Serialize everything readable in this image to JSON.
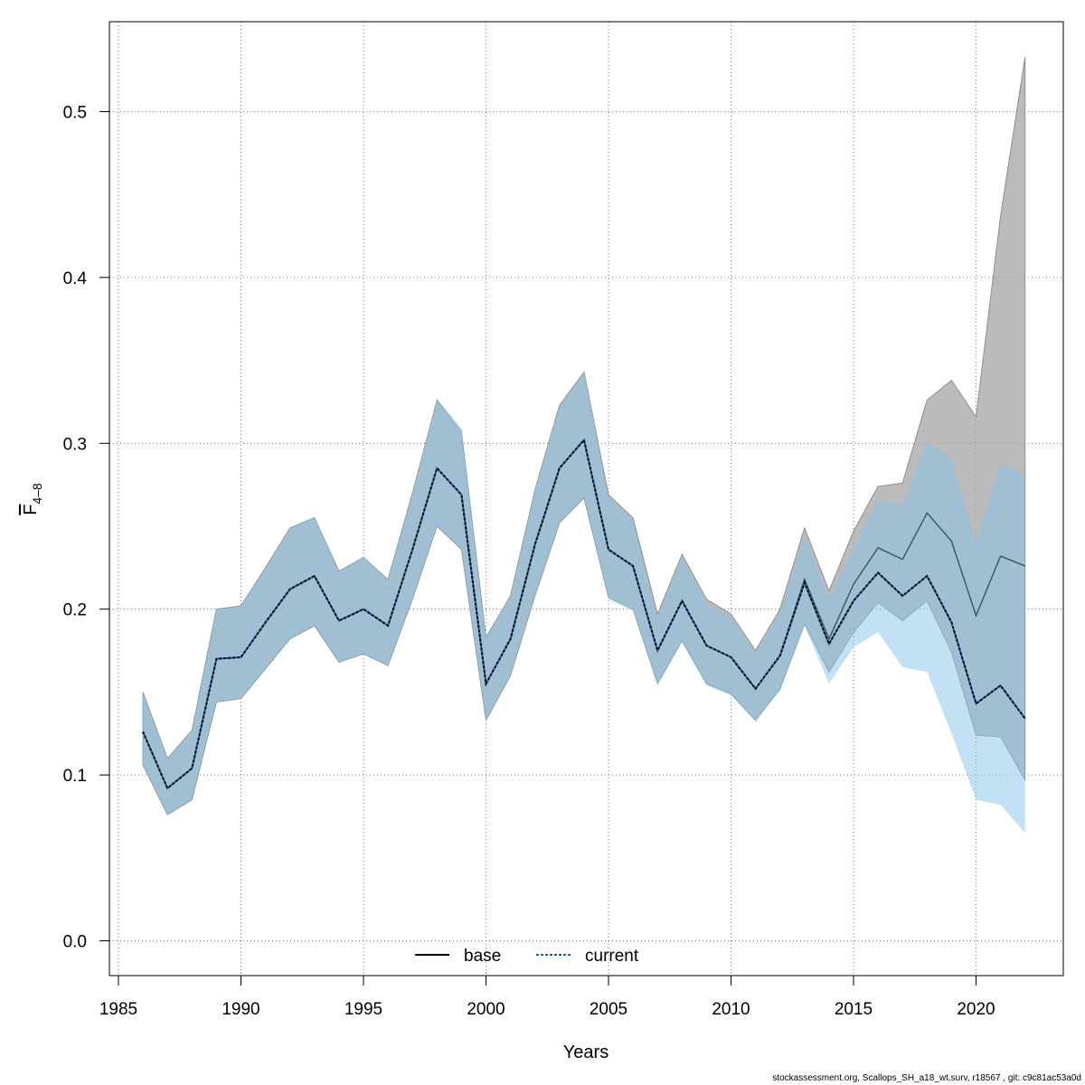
{
  "chart_data": {
    "type": "line",
    "title": "",
    "xlabel": "Years",
    "ylabel_main": "F",
    "ylabel_sub": "4–8",
    "xlim": [
      1985,
      2023
    ],
    "ylim": [
      0.0,
      0.54
    ],
    "xticks": [
      1985,
      1990,
      1995,
      2000,
      2005,
      2010,
      2015,
      2020
    ],
    "yticks": [
      "0.0",
      "0.1",
      "0.2",
      "0.3",
      "0.4",
      "0.5"
    ],
    "grid": true,
    "legend_position": "bottom-center",
    "x": [
      1986,
      1987,
      1988,
      1989,
      1990,
      1991,
      1992,
      1993,
      1994,
      1995,
      1996,
      1997,
      1998,
      1999,
      2000,
      2001,
      2002,
      2003,
      2004,
      2005,
      2006,
      2007,
      2008,
      2009,
      2010,
      2011,
      2012,
      2013,
      2014,
      2015,
      2016,
      2017,
      2018,
      2019,
      2020,
      2021,
      2022
    ],
    "series": [
      {
        "name": "base",
        "color": "#000000",
        "band_color": "#a8a8a8",
        "values": [
          0.126,
          0.092,
          0.104,
          0.17,
          0.171,
          0.192,
          0.212,
          0.22,
          0.193,
          0.2,
          0.19,
          0.236,
          0.285,
          0.269,
          0.155,
          0.182,
          0.239,
          0.285,
          0.302,
          0.236,
          0.226,
          0.175,
          0.205,
          0.178,
          0.171,
          0.152,
          0.172,
          0.218,
          0.182,
          0.215,
          0.237,
          0.23,
          0.258,
          0.241,
          0.196,
          0.232,
          0.226
        ],
        "lower": [
          0.106,
          0.076,
          0.085,
          0.144,
          0.146,
          0.164,
          0.182,
          0.19,
          0.168,
          0.173,
          0.166,
          0.206,
          0.25,
          0.236,
          0.133,
          0.16,
          0.208,
          0.252,
          0.267,
          0.207,
          0.2,
          0.155,
          0.181,
          0.155,
          0.149,
          0.133,
          0.152,
          0.191,
          0.162,
          0.186,
          0.204,
          0.193,
          0.205,
          0.174,
          0.124,
          0.123,
          0.097
        ],
        "upper": [
          0.15,
          0.11,
          0.127,
          0.2,
          0.202,
          0.225,
          0.249,
          0.255,
          0.223,
          0.231,
          0.218,
          0.27,
          0.326,
          0.307,
          0.183,
          0.208,
          0.272,
          0.323,
          0.343,
          0.269,
          0.255,
          0.197,
          0.233,
          0.206,
          0.197,
          0.175,
          0.2,
          0.249,
          0.211,
          0.247,
          0.274,
          0.276,
          0.326,
          0.338,
          0.316,
          0.437,
          0.533
        ]
      },
      {
        "name": "current",
        "color": "#1f5c8f",
        "band_color": "#87c3ea",
        "values": [
          0.126,
          0.092,
          0.104,
          0.17,
          0.171,
          0.192,
          0.212,
          0.22,
          0.193,
          0.2,
          0.19,
          0.236,
          0.285,
          0.269,
          0.155,
          0.182,
          0.239,
          0.285,
          0.302,
          0.236,
          0.226,
          0.175,
          0.205,
          0.178,
          0.171,
          0.152,
          0.172,
          0.216,
          0.179,
          0.205,
          0.222,
          0.208,
          0.22,
          0.192,
          0.143,
          0.154,
          0.134
        ],
        "lower": [
          0.106,
          0.076,
          0.085,
          0.144,
          0.146,
          0.164,
          0.182,
          0.19,
          0.168,
          0.173,
          0.166,
          0.206,
          0.25,
          0.236,
          0.133,
          0.16,
          0.208,
          0.252,
          0.267,
          0.206,
          0.199,
          0.154,
          0.18,
          0.154,
          0.148,
          0.132,
          0.151,
          0.19,
          0.155,
          0.177,
          0.186,
          0.165,
          0.162,
          0.125,
          0.085,
          0.082,
          0.065
        ],
        "upper": [
          0.15,
          0.11,
          0.127,
          0.2,
          0.202,
          0.225,
          0.249,
          0.256,
          0.223,
          0.232,
          0.218,
          0.27,
          0.327,
          0.309,
          0.183,
          0.208,
          0.272,
          0.323,
          0.343,
          0.268,
          0.254,
          0.196,
          0.231,
          0.204,
          0.195,
          0.174,
          0.198,
          0.245,
          0.206,
          0.237,
          0.266,
          0.263,
          0.301,
          0.291,
          0.24,
          0.288,
          0.28
        ]
      }
    ]
  },
  "footer": "stockassessment.org, Scallops_SH_a18_wt.surv, r18567 , git: c9c81ac53a0d"
}
